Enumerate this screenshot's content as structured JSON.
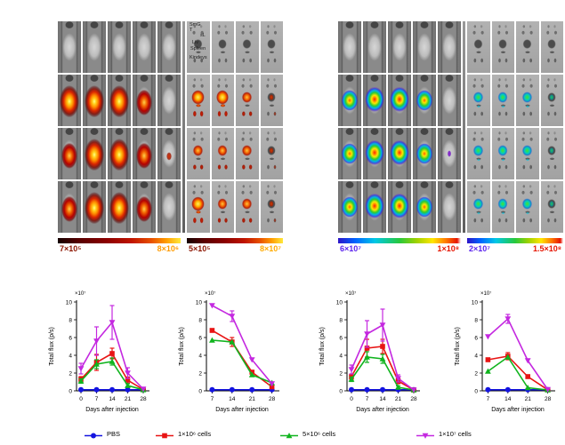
{
  "figure": {
    "panels": [
      {
        "id": "mice-invivo-left",
        "kind": "mice",
        "colormap": "hot",
        "cols": 5,
        "signal_rows": [
          [
            0,
            0,
            0,
            0,
            0
          ],
          [
            3,
            3,
            3,
            2,
            0
          ],
          [
            2,
            3,
            3,
            2,
            1
          ],
          [
            2,
            3,
            3,
            2,
            0
          ]
        ],
        "colorbar": {
          "min": "7×10⁵",
          "max": "8×10⁶",
          "min_color": "#8c1400",
          "max_color": "#ff9b00"
        }
      },
      {
        "id": "organs-exvivo-left",
        "kind": "organs",
        "colormap": "hot",
        "cols": 4,
        "organ_labels": {
          "l1": "SmG T",
          "l2": "sL",
          "l3": "Liv",
          "l4": "Spleen",
          "l5": "Kindeys"
        },
        "signal_rows": [
          [
            0,
            0,
            0,
            0
          ],
          [
            3,
            3,
            2,
            1
          ],
          [
            2,
            2,
            2,
            1
          ],
          [
            3,
            2,
            2,
            1
          ]
        ],
        "colorbar": {
          "min": "5×10⁵",
          "max": "8×10⁷",
          "min_color": "#8c1400",
          "max_color": "#ffaa00"
        }
      },
      {
        "id": "mice-invivo-right",
        "kind": "mice",
        "colormap": "jet",
        "cols": 5,
        "signal_rows": [
          [
            0,
            0,
            0,
            0,
            0
          ],
          [
            2,
            3,
            3,
            2,
            0
          ],
          [
            2,
            3,
            3,
            2,
            1
          ],
          [
            2,
            3,
            3,
            2,
            0
          ]
        ],
        "colorbar": {
          "min": "6×10⁷",
          "max": "1×10⁸",
          "min_color": "#5а22ее",
          "max_color": "#e61400"
        }
      },
      {
        "id": "organs-exvivo-right",
        "kind": "organs",
        "colormap": "jet",
        "cols": 4,
        "signal_rows": [
          [
            0,
            0,
            0,
            0
          ],
          [
            2,
            2,
            2,
            1
          ],
          [
            2,
            2,
            2,
            1
          ],
          [
            2,
            2,
            2,
            1
          ]
        ],
        "colorbar": {
          "min": "2×10⁷",
          "max": "1.5×10⁸",
          "min_color": "#5a22ee",
          "max_color": "#e61400"
        }
      }
    ],
    "colorbar_label_colors": {
      "hot_min": "#8c1400",
      "hot_max": "#ff9b00",
      "jet_min": "#5a22ee",
      "jet_max": "#e61400"
    }
  },
  "series_colors": {
    "blue": "#1414e0",
    "red": "#e81414",
    "green": "#10b41e",
    "purple": "#c428e0"
  },
  "legend": {
    "entries": [
      {
        "label": "PBS",
        "color": "#1414e0",
        "marker": "circle"
      },
      {
        "label": "1×10⁶ cells",
        "color": "#e81414",
        "marker": "square"
      },
      {
        "label": "5×10⁶ cells",
        "color": "#10b41e",
        "marker": "triangle-up"
      },
      {
        "label": "1×10⁷ cells",
        "color": "#c428e0",
        "marker": "triangle-down"
      }
    ]
  },
  "chart_data": [
    {
      "type": "line",
      "id": "invivo-left-quant",
      "title": "",
      "xlabel": "Days after injection",
      "ylabel": "Total flux (p/s)",
      "y_offset": "×10⁷",
      "x": [
        0,
        7,
        14,
        21,
        28
      ],
      "xlim": [
        -2,
        30
      ],
      "ylim": [
        0,
        10
      ],
      "yticks": [
        0,
        2,
        4,
        6,
        8,
        10
      ],
      "legend_position": "none",
      "grid": false,
      "series": [
        {
          "name": "PBS",
          "color": "#1414e0",
          "marker": "circle",
          "values": [
            0.12,
            0.12,
            0.12,
            0.12,
            0.12
          ],
          "err": [
            0,
            0,
            0,
            0,
            0
          ]
        },
        {
          "name": "1×10⁶ cells",
          "color": "#e81414",
          "marker": "square",
          "values": [
            1.3,
            3.2,
            4.2,
            1.2,
            0.15
          ],
          "err": [
            0.3,
            0.9,
            0.6,
            0.35,
            0
          ]
        },
        {
          "name": "5×10⁶ cells",
          "color": "#10b41e",
          "marker": "triangle-up",
          "values": [
            1.1,
            3.0,
            3.3,
            0.6,
            0.12
          ],
          "err": [
            0.25,
            0.5,
            0.4,
            0.2,
            0
          ]
        },
        {
          "name": "1×10⁷ cells",
          "color": "#c428e0",
          "marker": "triangle-down",
          "values": [
            2.5,
            5.6,
            7.7,
            2.0,
            0.2
          ],
          "err": [
            0.6,
            1.6,
            1.9,
            0.6,
            0
          ]
        }
      ]
    },
    {
      "type": "line",
      "id": "exvivo-left-quant",
      "title": "",
      "xlabel": "Days after injection",
      "ylabel": "Total flux (p/s)",
      "y_offset": "×10⁷",
      "x": [
        7,
        14,
        21,
        28
      ],
      "xlim": [
        5,
        30
      ],
      "ylim": [
        0,
        10
      ],
      "yticks": [
        0,
        2,
        4,
        6,
        8,
        10
      ],
      "legend_position": "none",
      "grid": false,
      "series": [
        {
          "name": "PBS",
          "color": "#1414e0",
          "marker": "circle",
          "values": [
            0.12,
            0.12,
            0.12,
            0.12
          ],
          "err": [
            0,
            0,
            0,
            0
          ]
        },
        {
          "name": "1×10⁶ cells",
          "color": "#e81414",
          "marker": "square",
          "values": [
            6.8,
            5.5,
            2.1,
            0.45
          ],
          "err": [
            0,
            0.5,
            0,
            0
          ]
        },
        {
          "name": "5×10⁶ cells",
          "color": "#10b41e",
          "marker": "triangle-up",
          "values": [
            5.7,
            5.5,
            1.8,
            0.9
          ],
          "err": [
            0,
            0,
            0,
            0
          ]
        },
        {
          "name": "1×10⁷ cells",
          "color": "#c428e0",
          "marker": "triangle-down",
          "values": [
            9.6,
            8.4,
            3.5,
            0.8
          ],
          "err": [
            0,
            0.6,
            0,
            0
          ]
        }
      ]
    },
    {
      "type": "line",
      "id": "invivo-right-quant",
      "title": "",
      "xlabel": "Days after injection",
      "ylabel": "Total flux (p/s)",
      "y_offset": "×10⁷",
      "x": [
        0,
        7,
        14,
        21,
        28
      ],
      "xlim": [
        -2,
        30
      ],
      "ylim": [
        0,
        10
      ],
      "yticks": [
        0,
        2,
        4,
        6,
        8,
        10
      ],
      "legend_position": "none",
      "grid": false,
      "series": [
        {
          "name": "PBS",
          "color": "#1414e0",
          "marker": "circle",
          "values": [
            0.12,
            0.12,
            0.12,
            0.12,
            0.12
          ],
          "err": [
            0,
            0,
            0,
            0,
            0
          ]
        },
        {
          "name": "1×10⁶ cells",
          "color": "#e81414",
          "marker": "square",
          "values": [
            1.6,
            4.8,
            5.0,
            1.1,
            0.1
          ],
          "err": [
            0.3,
            1.0,
            0.8,
            0.3,
            0
          ]
        },
        {
          "name": "5×10⁶ cells",
          "color": "#10b41e",
          "marker": "triangle-up",
          "values": [
            1.3,
            3.8,
            3.6,
            0.4,
            0.1
          ],
          "err": [
            0.25,
            0.6,
            0.5,
            0.15,
            0
          ]
        },
        {
          "name": "1×10⁷ cells",
          "color": "#c428e0",
          "marker": "triangle-down",
          "values": [
            2.4,
            6.4,
            7.4,
            1.4,
            0.1
          ],
          "err": [
            0.5,
            1.5,
            1.8,
            0.4,
            0
          ]
        }
      ]
    },
    {
      "type": "line",
      "id": "exvivo-right-quant",
      "title": "",
      "xlabel": "Days after injection",
      "ylabel": "Total flux (p/s)",
      "y_offset": "×10⁷",
      "x": [
        7,
        14,
        21,
        28
      ],
      "xlim": [
        5,
        30
      ],
      "ylim": [
        0,
        10
      ],
      "yticks": [
        0,
        2,
        4,
        6,
        8,
        10
      ],
      "legend_position": "none",
      "grid": false,
      "series": [
        {
          "name": "PBS",
          "color": "#1414e0",
          "marker": "circle",
          "values": [
            0.12,
            0.12,
            0.12,
            0.12
          ],
          "err": [
            0,
            0,
            0,
            0
          ]
        },
        {
          "name": "1×10⁶ cells",
          "color": "#e81414",
          "marker": "square",
          "values": [
            3.5,
            3.9,
            1.6,
            0.12
          ],
          "err": [
            0,
            0.4,
            0,
            0
          ]
        },
        {
          "name": "5×10⁶ cells",
          "color": "#10b41e",
          "marker": "triangle-up",
          "values": [
            2.2,
            3.8,
            0.35,
            0.1
          ],
          "err": [
            0,
            0,
            0,
            0
          ]
        },
        {
          "name": "1×10⁷ cells",
          "color": "#c428e0",
          "marker": "triangle-down",
          "values": [
            6.1,
            8.1,
            3.4,
            0.15
          ],
          "err": [
            0,
            0.5,
            0,
            0
          ]
        }
      ]
    }
  ]
}
